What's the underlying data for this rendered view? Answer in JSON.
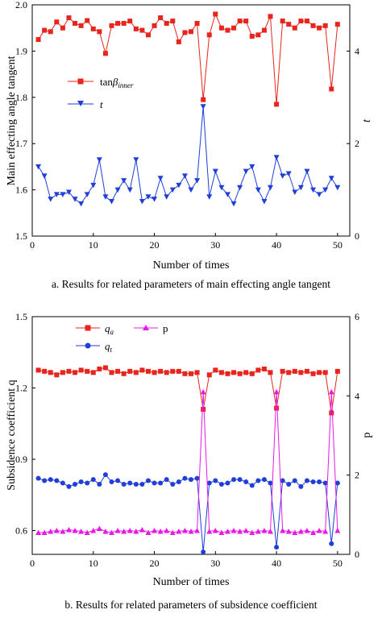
{
  "chart_data": [
    {
      "type": "line",
      "caption": "a. Results for related parameters of main effecting angle tangent",
      "xlabel": "Number of times",
      "ylabel": "Main effecting angle tangent",
      "y2label": "t",
      "xlim": [
        0,
        52
      ],
      "xticks": [
        0,
        10,
        20,
        30,
        40,
        50
      ],
      "ylim": [
        1.5,
        2.0
      ],
      "yticks": [
        "1.5",
        "1.6",
        "1.7",
        "1.8",
        "1.9",
        "2.0"
      ],
      "y2lim": [
        0,
        5
      ],
      "y2ticks": [
        0,
        2,
        4
      ],
      "legend_position": "upper-left",
      "x": [
        1,
        2,
        3,
        4,
        5,
        6,
        7,
        8,
        9,
        10,
        11,
        12,
        13,
        14,
        15,
        16,
        17,
        18,
        19,
        20,
        21,
        22,
        23,
        24,
        25,
        26,
        27,
        28,
        29,
        30,
        31,
        32,
        33,
        34,
        35,
        36,
        37,
        38,
        39,
        40,
        41,
        42,
        43,
        44,
        45,
        46,
        47,
        48,
        49,
        50
      ],
      "series": [
        {
          "name": "tanβinner",
          "legend_main": "tan",
          "legend_symbol": "β",
          "legend_sub": "inner",
          "axis": "left",
          "color": "#e8241c",
          "marker": "square",
          "values": [
            1.925,
            1.945,
            1.942,
            1.963,
            1.95,
            1.972,
            1.96,
            1.955,
            1.966,
            1.948,
            1.942,
            1.895,
            1.955,
            1.96,
            1.96,
            1.965,
            1.948,
            1.945,
            1.935,
            1.955,
            1.972,
            1.96,
            1.965,
            1.92,
            1.94,
            1.942,
            1.96,
            1.795,
            1.935,
            1.98,
            1.95,
            1.945,
            1.95,
            1.965,
            1.965,
            1.932,
            1.935,
            1.945,
            1.975,
            1.785,
            1.965,
            1.958,
            1.95,
            1.965,
            1.965,
            1.955,
            1.95,
            1.955,
            1.818,
            1.958
          ]
        },
        {
          "name": "t",
          "axis": "right",
          "color": "#1f3fd8",
          "marker": "triangle-down",
          "values": [
            1.5,
            1.3,
            0.8,
            0.9,
            0.9,
            0.95,
            0.8,
            0.7,
            0.9,
            1.1,
            1.65,
            0.85,
            0.75,
            1.0,
            1.2,
            1.0,
            1.65,
            0.75,
            0.85,
            0.8,
            1.25,
            0.85,
            1.0,
            1.1,
            1.3,
            1.0,
            1.2,
            2.8,
            0.85,
            1.4,
            1.05,
            0.9,
            0.7,
            1.05,
            1.4,
            1.5,
            1.0,
            0.75,
            1.05,
            1.7,
            1.3,
            1.35,
            0.95,
            1.05,
            1.4,
            1.0,
            0.9,
            1.0,
            1.25,
            1.05
          ]
        }
      ]
    },
    {
      "type": "line",
      "caption": "b. Results for related parameters of subsidence coefficient",
      "xlabel": "Number of times",
      "ylabel": "Subsidence coefficient q",
      "y2label": "p",
      "xlim": [
        0,
        52
      ],
      "xticks": [
        0,
        10,
        20,
        30,
        40,
        50
      ],
      "ylim": [
        0.5,
        1.5
      ],
      "yticks": [
        "0.6",
        "0.9",
        "1.2",
        "1.5"
      ],
      "y2lim": [
        0,
        6
      ],
      "y2ticks": [
        0,
        2,
        4,
        6
      ],
      "legend_position": "top",
      "x": [
        1,
        2,
        3,
        4,
        5,
        6,
        7,
        8,
        9,
        10,
        11,
        12,
        13,
        14,
        15,
        16,
        17,
        18,
        19,
        20,
        21,
        22,
        23,
        24,
        25,
        26,
        27,
        28,
        29,
        30,
        31,
        32,
        33,
        34,
        35,
        36,
        37,
        38,
        39,
        40,
        41,
        42,
        43,
        44,
        45,
        46,
        47,
        48,
        49,
        50
      ],
      "series": [
        {
          "name": "qa",
          "legend_main": "q",
          "legend_sub": "a",
          "axis": "left",
          "color": "#e8241c",
          "marker": "square",
          "values": [
            1.275,
            1.27,
            1.265,
            1.255,
            1.265,
            1.27,
            1.265,
            1.275,
            1.27,
            1.265,
            1.28,
            1.285,
            1.265,
            1.27,
            1.26,
            1.27,
            1.265,
            1.275,
            1.27,
            1.265,
            1.27,
            1.265,
            1.27,
            1.27,
            1.26,
            1.26,
            1.265,
            1.11,
            1.255,
            1.275,
            1.265,
            1.26,
            1.265,
            1.26,
            1.265,
            1.26,
            1.275,
            1.28,
            1.265,
            1.115,
            1.27,
            1.265,
            1.27,
            1.265,
            1.27,
            1.26,
            1.265,
            1.265,
            1.095,
            1.27
          ]
        },
        {
          "name": "qt",
          "legend_main": "q",
          "legend_sub": "t",
          "axis": "left",
          "color": "#1f3fd8",
          "marker": "circle",
          "values": [
            0.82,
            0.81,
            0.815,
            0.81,
            0.8,
            0.785,
            0.795,
            0.805,
            0.8,
            0.815,
            0.795,
            0.835,
            0.805,
            0.81,
            0.795,
            0.8,
            0.795,
            0.795,
            0.81,
            0.8,
            0.8,
            0.815,
            0.795,
            0.805,
            0.82,
            0.815,
            0.82,
            0.51,
            0.8,
            0.81,
            0.795,
            0.8,
            0.815,
            0.815,
            0.805,
            0.79,
            0.81,
            0.815,
            0.8,
            0.53,
            0.81,
            0.795,
            0.81,
            0.785,
            0.81,
            0.805,
            0.805,
            0.8,
            0.545,
            0.8
          ]
        },
        {
          "name": "p",
          "axis": "right",
          "color": "#e619e6",
          "marker": "triangle-up",
          "values": [
            0.55,
            0.55,
            0.58,
            0.6,
            0.58,
            0.62,
            0.6,
            0.58,
            0.55,
            0.6,
            0.65,
            0.58,
            0.55,
            0.6,
            0.58,
            0.6,
            0.58,
            0.62,
            0.55,
            0.6,
            0.58,
            0.6,
            0.55,
            0.58,
            0.6,
            0.58,
            0.6,
            4.1,
            0.58,
            0.6,
            0.55,
            0.58,
            0.6,
            0.58,
            0.6,
            0.55,
            0.58,
            0.6,
            0.58,
            4.1,
            0.6,
            0.58,
            0.55,
            0.58,
            0.6,
            0.55,
            0.6,
            0.58,
            4.1,
            0.6
          ]
        }
      ]
    }
  ]
}
